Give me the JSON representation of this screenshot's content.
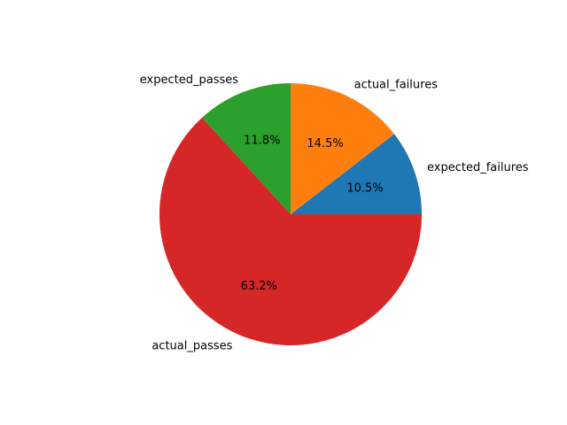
{
  "chart_data": {
    "type": "pie",
    "title": "",
    "start_angle_deg": 0,
    "direction": "counterclockwise",
    "legend": "none",
    "slices": [
      {
        "label": "expected_failures",
        "value": 10.5,
        "pct_label": "10.5%",
        "color": "#1f77b4"
      },
      {
        "label": "actual_failures",
        "value": 14.5,
        "pct_label": "14.5%",
        "color": "#ff7f0e"
      },
      {
        "label": "expected_passes",
        "value": 11.8,
        "pct_label": "11.8%",
        "color": "#2ca02c"
      },
      {
        "label": "actual_passes",
        "value": 63.2,
        "pct_label": "63.2%",
        "color": "#d62728"
      }
    ]
  }
}
